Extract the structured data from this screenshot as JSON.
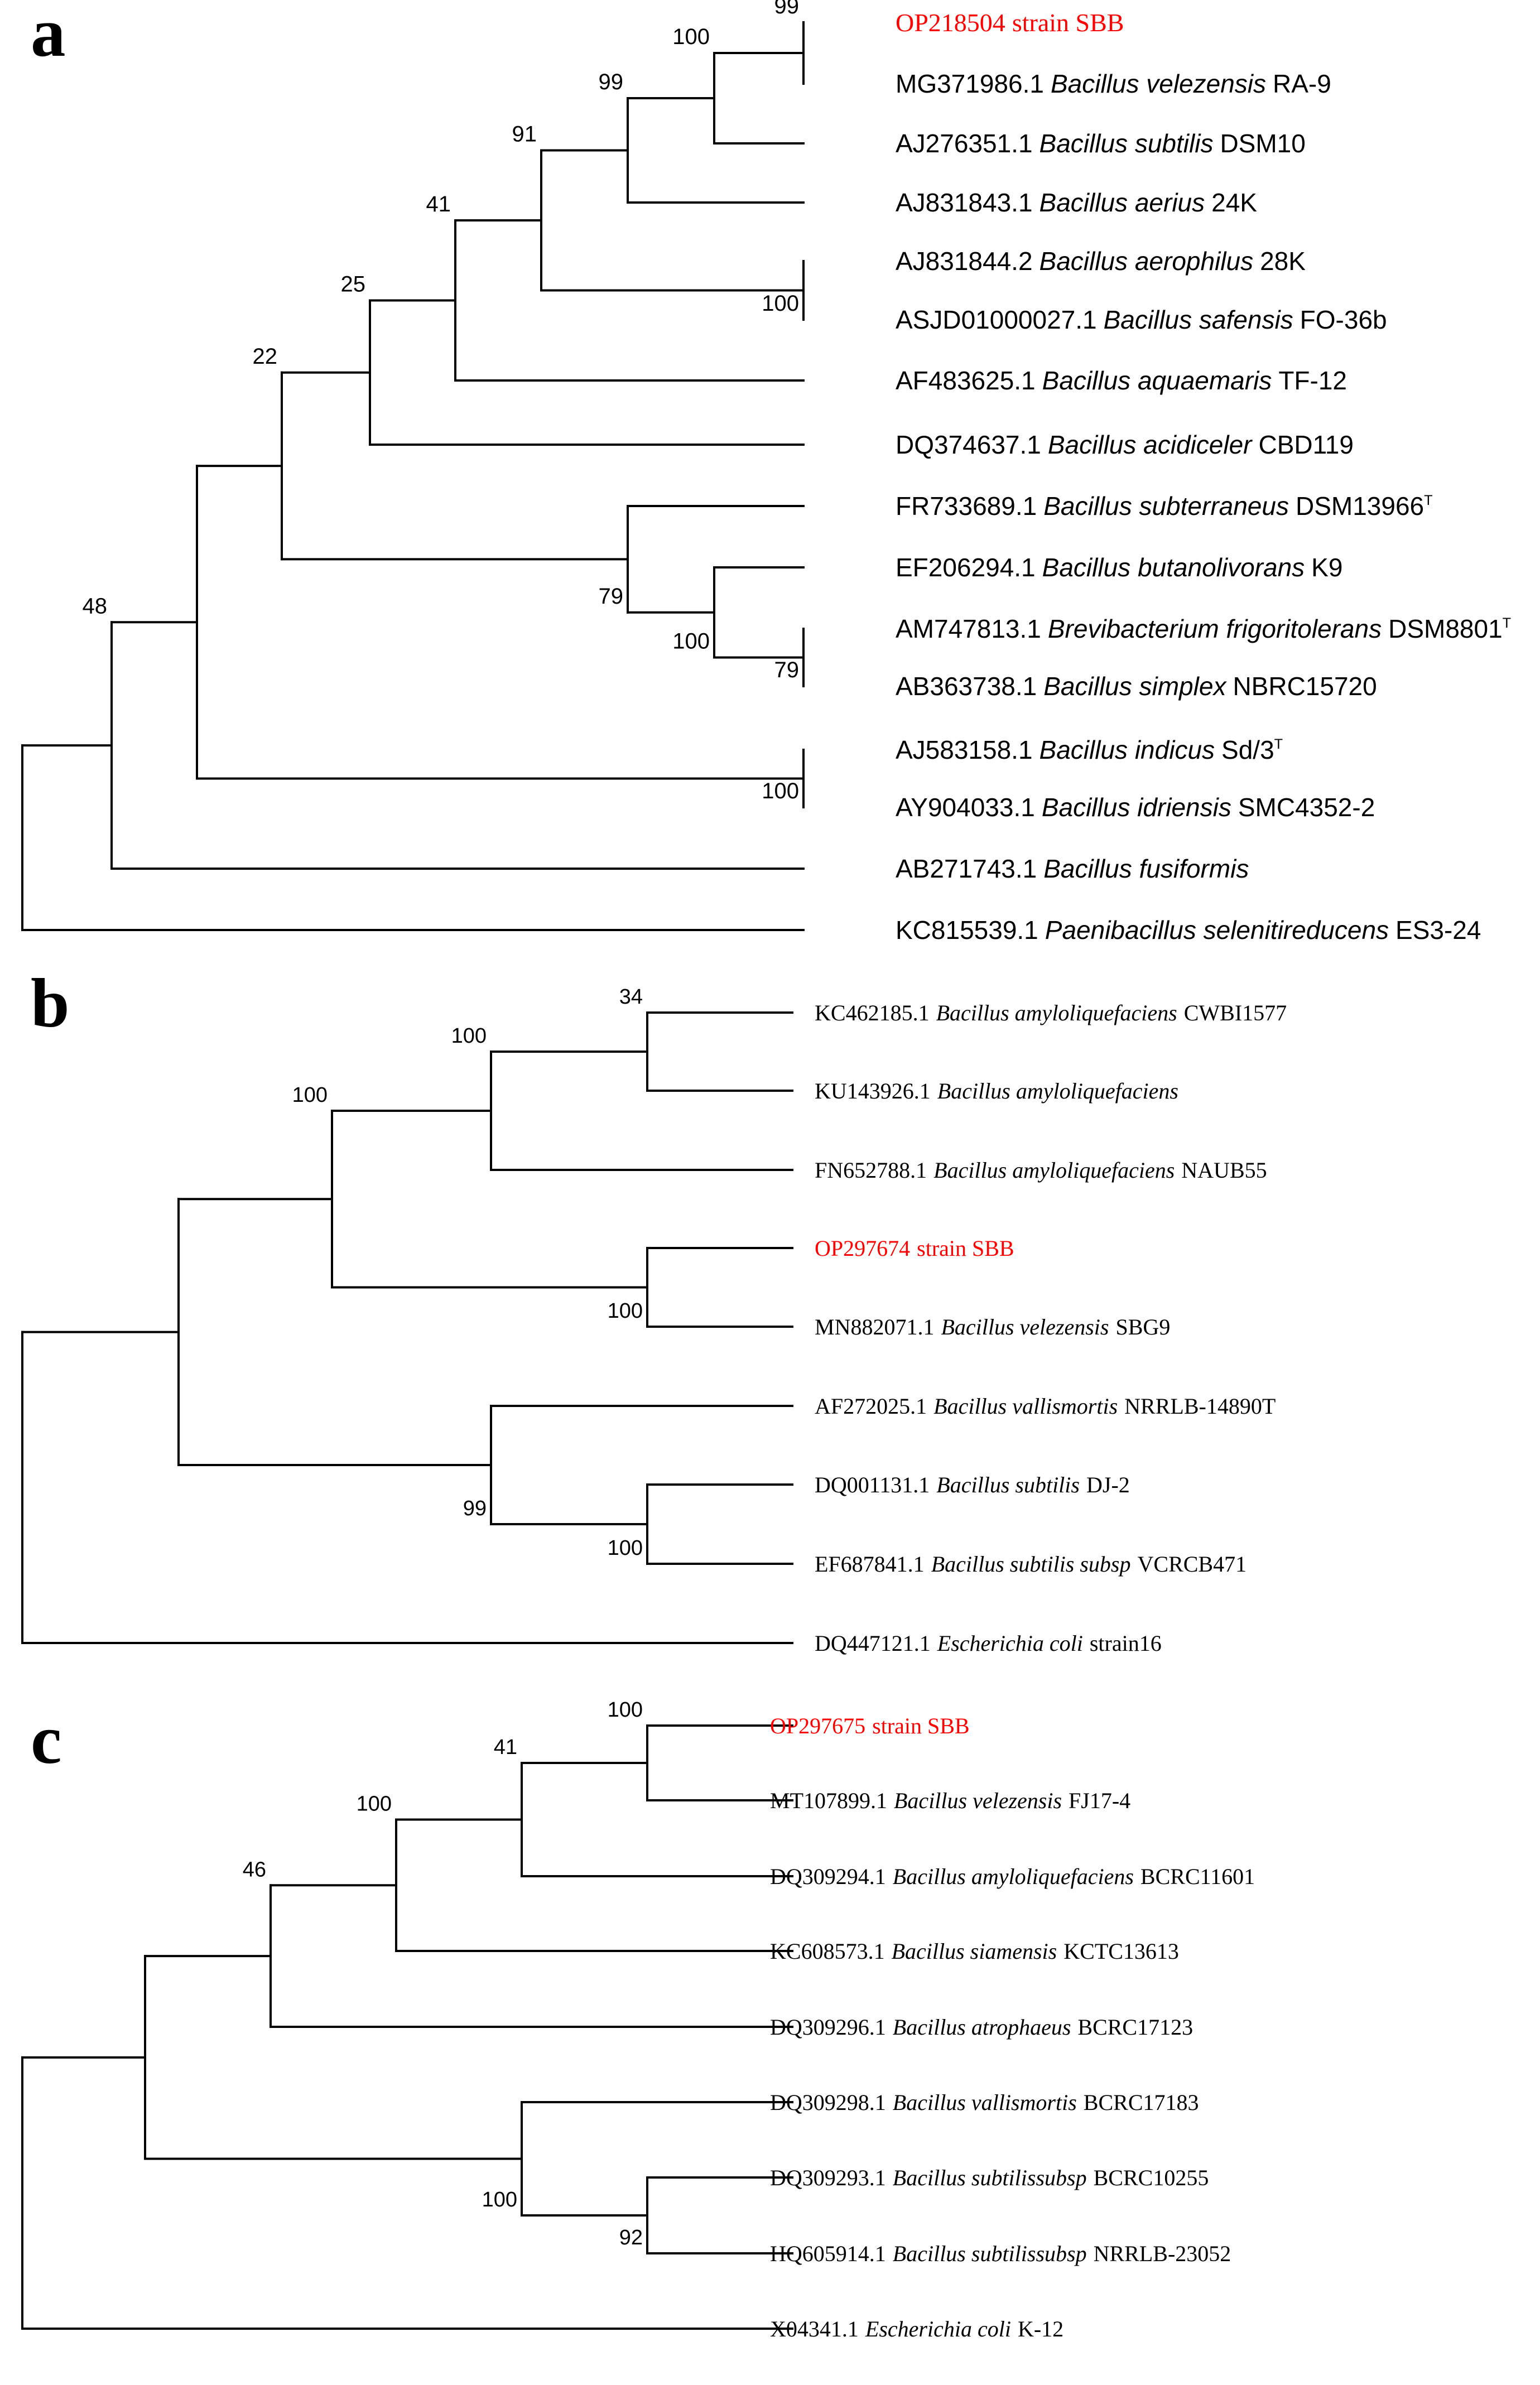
{
  "figure": {
    "colors": {
      "line": "#000000",
      "text": "#000000",
      "highlight": "#ff0000"
    },
    "panels": [
      {
        "label": "a",
        "leaves": [
          {
            "accession": "OP218504",
            "species": "",
            "strain": "strain SBB",
            "highlight": true
          },
          {
            "accession": "MG371986.1",
            "species": "Bacillus velezensis",
            "strain": "RA-9"
          },
          {
            "accession": "AJ276351.1",
            "species": "Bacillus subtilis",
            "strain": "DSM10"
          },
          {
            "accession": "AJ831843.1",
            "species": "Bacillus aerius",
            "strain": "24K"
          },
          {
            "accession": "AJ831844.2",
            "species": "Bacillus aerophilus",
            "strain": "28K"
          },
          {
            "accession": "ASJD01000027.1",
            "species": "Bacillus safensis",
            "strain": "FO-36b"
          },
          {
            "accession": "AF483625.1",
            "species": "Bacillus aquaemaris",
            "strain": "TF-12"
          },
          {
            "accession": "DQ374637.1",
            "species": "Bacillus acidiceler",
            "strain": "CBD119"
          },
          {
            "accession": "FR733689.1",
            "species": "Bacillus subterraneus",
            "strain": "DSM13966",
            "sup": "T"
          },
          {
            "accession": "EF206294.1",
            "species": "Bacillus butanolivorans",
            "strain": "K9"
          },
          {
            "accession": "AM747813.1",
            "species": "Brevibacterium frigoritolerans",
            "strain": "DSM8801",
            "sup": "T"
          },
          {
            "accession": "AB363738.1",
            "species": "Bacillus simplex",
            "strain": "NBRC15720"
          },
          {
            "accession": "AJ583158.1",
            "species": "Bacillus indicus",
            "strain": "Sd/3",
            "sup": "T"
          },
          {
            "accession": "AY904033.1",
            "species": "Bacillus idriensis",
            "strain": "SMC4352-2"
          },
          {
            "accession": "AB271743.1",
            "species": "Bacillus fusiformis",
            "strain": ""
          },
          {
            "accession": "KC815539.1",
            "species": "Paenibacillus selenitireducens",
            "strain": "ES3-24"
          }
        ],
        "bootstrap": [
          "99",
          "100",
          "99",
          "91",
          "100",
          "41",
          "25",
          "22",
          "79",
          "100",
          "79",
          "100",
          "48"
        ]
      },
      {
        "label": "b",
        "leaves": [
          {
            "accession": "KC462185.1",
            "species": "Bacillus amyloliquefaciens",
            "strain": "CWBI1577"
          },
          {
            "accession": "KU143926.1",
            "species": "Bacillus amyloliquefaciens",
            "strain": ""
          },
          {
            "accession": "FN652788.1",
            "species": "Bacillus amyloliquefaciens",
            "strain": "NAUB55"
          },
          {
            "accession": "OP297674",
            "species": "",
            "strain": "strain SBB",
            "highlight": true
          },
          {
            "accession": "MN882071.1",
            "species": "Bacillus velezensis",
            "strain": "SBG9"
          },
          {
            "accession": "AF272025.1",
            "species": "Bacillus vallismortis",
            "strain": "NRRLB-14890T"
          },
          {
            "accession": "DQ001131.1",
            "species": "Bacillus subtilis",
            "strain": "DJ-2"
          },
          {
            "accession": "EF687841.1",
            "species": "Bacillus subtilis subsp",
            "strain": "VCRCB471"
          },
          {
            "accession": "DQ447121.1",
            "species": "Escherichia coli",
            "strain": "strain16"
          }
        ],
        "bootstrap": [
          "34",
          "100",
          "100",
          "100",
          "99",
          "100"
        ]
      },
      {
        "label": "c",
        "leaves": [
          {
            "accession": "OP297675",
            "species": "",
            "strain": "strain SBB",
            "highlight": true
          },
          {
            "accession": "MT107899.1",
            "species": "Bacillus velezensis",
            "strain": "FJ17-4"
          },
          {
            "accession": "DQ309294.1",
            "species": "Bacillus amyloliquefaciens",
            "strain": "BCRC11601"
          },
          {
            "accession": "KC608573.1",
            "species": "Bacillus siamensis",
            "strain": "KCTC13613"
          },
          {
            "accession": "DQ309296.1",
            "species": "Bacillus atrophaeus",
            "strain": "BCRC17123"
          },
          {
            "accession": "DQ309298.1",
            "species": "Bacillus vallismortis",
            "strain": "BCRC17183"
          },
          {
            "accession": "DQ309293.1",
            "species": "Bacillus subtilissubsp",
            "strain": "BCRC10255"
          },
          {
            "accession": "HQ605914.1",
            "species": "Bacillus subtilissubsp",
            "strain": "NRRLB-23052"
          },
          {
            "accession": "X04341.1",
            "species": "Escherichia coli",
            "strain": "K-12"
          }
        ],
        "bootstrap": [
          "100",
          "41",
          "100",
          "46",
          "92",
          "100"
        ]
      }
    ]
  }
}
